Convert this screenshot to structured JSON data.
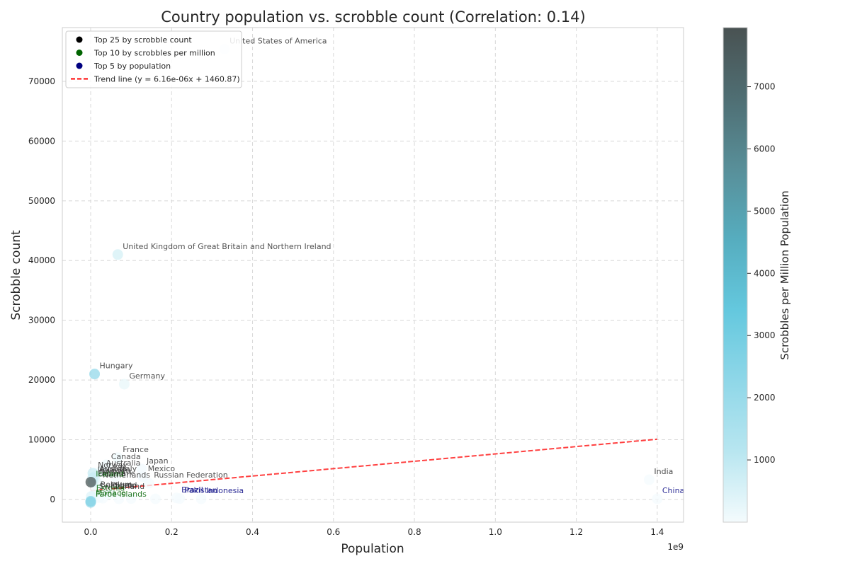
{
  "chart_data": {
    "type": "scatter",
    "title": "Country population vs. scrobble count (Correlation: 0.14)",
    "xlabel": "Population",
    "ylabel": "Scrobble count",
    "x_offset_label": "1e9",
    "xlim": [
      -70000000,
      1465000000
    ],
    "ylim": [
      -3800,
      79000
    ],
    "xticks": [
      0,
      200000000,
      400000000,
      600000000,
      800000000,
      1000000000,
      1200000000,
      1400000000
    ],
    "xtick_labels": [
      "0.0",
      "0.2",
      "0.4",
      "0.6",
      "0.8",
      "1.0",
      "1.2",
      "1.4"
    ],
    "yticks": [
      0,
      10000,
      20000,
      30000,
      40000,
      50000,
      60000,
      70000
    ],
    "ytick_labels": [
      "0",
      "10000",
      "20000",
      "30000",
      "40000",
      "50000",
      "60000",
      "70000"
    ],
    "grid": true,
    "legend_position": "top-left",
    "colorbar": {
      "label": "Scrobbles per Million Population",
      "range": [
        0,
        7950
      ],
      "ticks": [
        1000,
        2000,
        3000,
        4000,
        5000,
        6000,
        7000
      ],
      "tick_labels": [
        "1000",
        "2000",
        "3000",
        "4000",
        "5000",
        "6000",
        "7000"
      ],
      "colors": [
        "#f4fbfd",
        "#b8e6f0",
        "#8fd7e8",
        "#64c8de",
        "#56adbf",
        "#588f99",
        "#4f6e73",
        "#495252"
      ]
    },
    "legend": [
      {
        "label": "Top 25 by scrobble count",
        "marker": "dot",
        "color": "#000000"
      },
      {
        "label": "Top 10 by scrobbles per million",
        "marker": "dot",
        "color": "#006400"
      },
      {
        "label": "Top 5 by population",
        "marker": "dot",
        "color": "#000080"
      },
      {
        "label": "Trend line (y = 6.16e-06x + 1460.87)",
        "marker": "dash",
        "color": "#ff0000"
      }
    ],
    "trend_line": {
      "slope": 6.16e-06,
      "intercept": 1460.87,
      "x_range": [
        0,
        1400000000
      ],
      "color": "#ff0000"
    },
    "points": [
      {
        "name": "United States of America",
        "x": 331000000,
        "y": 75400,
        "cval": 228,
        "label_group": "top25"
      },
      {
        "name": "United Kingdom of Great Britain and Northern Ireland",
        "x": 67000000,
        "y": 41000,
        "cval": 612,
        "label_group": "top25"
      },
      {
        "name": "Hungary",
        "x": 9700000,
        "y": 21000,
        "cval": 2160,
        "label_group": "top25"
      },
      {
        "name": "Germany",
        "x": 83000000,
        "y": 19300,
        "cval": 232,
        "label_group": "top25"
      },
      {
        "name": "France",
        "x": 67000000,
        "y": 7000,
        "cval": 104,
        "label_group": "top25"
      },
      {
        "name": "Canada",
        "x": 38000000,
        "y": 5800,
        "cval": 153,
        "label_group": "top25"
      },
      {
        "name": "Japan",
        "x": 126000000,
        "y": 5100,
        "cval": 40,
        "label_group": "top25"
      },
      {
        "name": "Norway",
        "x": 5400000,
        "y": 4400,
        "cval": 815,
        "label_group": "top25"
      },
      {
        "name": "Australia",
        "x": 25700000,
        "y": 4700,
        "cval": 183,
        "label_group": "top25"
      },
      {
        "name": "Austria",
        "x": 9000000,
        "y": 3800,
        "cval": 422,
        "label_group": "top25"
      },
      {
        "name": "Italy",
        "x": 60000000,
        "y": 3800,
        "cval": 63,
        "label_group": "top25"
      },
      {
        "name": "Mexico",
        "x": 129000000,
        "y": 3800,
        "cval": 29,
        "label_group": "top25"
      },
      {
        "name": "Ireland",
        "x": 5000000,
        "y": 3600,
        "cval": 720,
        "label_group": "top25"
      },
      {
        "name": "Sweden",
        "x": 10400000,
        "y": 3500,
        "cval": 337,
        "label_group": "top25"
      },
      {
        "name": "Denmark",
        "x": 5800000,
        "y": 3000,
        "cval": 517,
        "label_group": "top25"
      },
      {
        "name": "Finland",
        "x": 5500000,
        "y": 2900,
        "cval": 527,
        "label_group": "top25"
      },
      {
        "name": "Netherlands",
        "x": 17500000,
        "y": 2700,
        "cval": 154,
        "label_group": "top25"
      },
      {
        "name": "Russian Federation",
        "x": 144000000,
        "y": 2700,
        "cval": 19,
        "label_group": "top25"
      },
      {
        "name": "Iceland",
        "x": 370000,
        "y": 2900,
        "cval": 7840,
        "label_group": "top10"
      },
      {
        "name": "Belgium",
        "x": 11600000,
        "y": 1100,
        "cval": 95,
        "label_group": "top25"
      },
      {
        "name": "Spain",
        "x": 47000000,
        "y": 1000,
        "cval": 21,
        "label_group": "top25"
      },
      {
        "name": "Poland",
        "x": 38000000,
        "y": 1000,
        "cval": 26,
        "label_group": "top25"
      },
      {
        "name": "Switzerland",
        "x": 8700000,
        "y": 800,
        "cval": 92,
        "label_group": "top25"
      },
      {
        "name": "Estonia",
        "x": 1330000,
        "y": 500,
        "cval": 376,
        "label_group": "top10"
      },
      {
        "name": "Monaco",
        "x": 39000,
        "y": -300,
        "cval": 2560,
        "label_group": "top10"
      },
      {
        "name": "Faroe Islands",
        "x": 49000,
        "y": -500,
        "cval": 2040,
        "label_group": "top10"
      },
      {
        "name": "India",
        "x": 1380000000,
        "y": 3300,
        "cval": 2,
        "label_group": "top25"
      },
      {
        "name": "China",
        "x": 1400000000,
        "y": 100,
        "cval": 0,
        "label_group": "top5"
      },
      {
        "name": "Indonesia",
        "x": 273000000,
        "y": 100,
        "cval": 0,
        "label_group": "top5"
      },
      {
        "name": "Pakistan",
        "x": 220000000,
        "y": 150,
        "cval": 0,
        "label_group": "top5"
      },
      {
        "name": "Brazil",
        "x": 212000000,
        "y": 250,
        "cval": 1,
        "label_group": "top5"
      },
      {
        "name": "",
        "x": 160000000,
        "y": 100,
        "cval": 1,
        "label_group": "none"
      },
      {
        "name": "",
        "x": 100000000,
        "y": 150,
        "cval": 2,
        "label_group": "none"
      },
      {
        "name": "",
        "x": 70000000,
        "y": 100,
        "cval": 2,
        "label_group": "none"
      },
      {
        "name": "",
        "x": 30000000,
        "y": 200,
        "cval": 7,
        "label_group": "none"
      },
      {
        "name": "",
        "x": 20000000,
        "y": 300,
        "cval": 15,
        "label_group": "none"
      },
      {
        "name": "",
        "x": 4000000,
        "y": 250,
        "cval": 60,
        "label_group": "none"
      }
    ]
  },
  "colors": {
    "top25": "#333333",
    "top10": "#006400",
    "top5": "#000080",
    "grid": "#d8d8d8",
    "frame": "#cccccc"
  }
}
